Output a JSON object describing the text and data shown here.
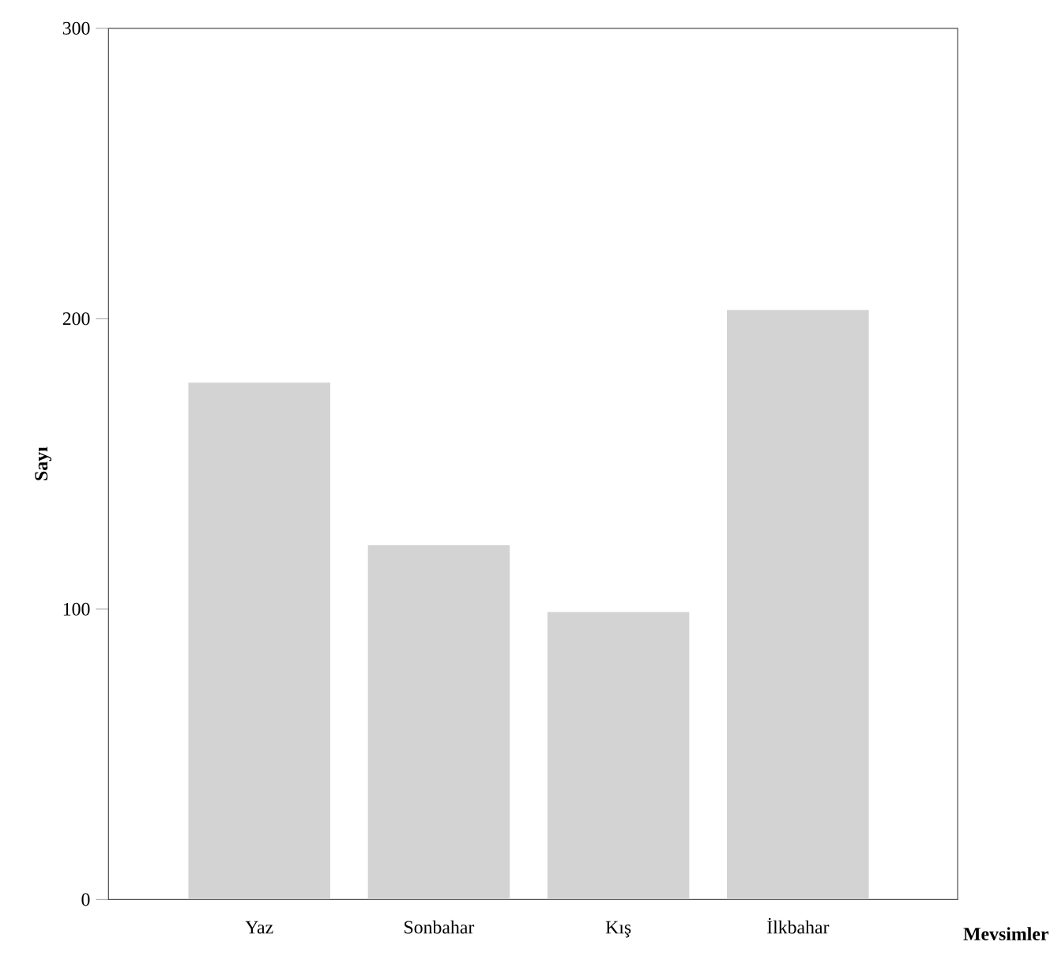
{
  "chart_data": {
    "type": "bar",
    "xlabel": "Mevsimler",
    "ylabel": "Sayı",
    "categories": [
      "Yaz",
      "Sonbahar",
      "Kış",
      "İlkbahar"
    ],
    "values": [
      178,
      122,
      99,
      203
    ],
    "color": "#d3d3d3",
    "ylim": [
      0,
      300
    ],
    "yticks": [
      0,
      100,
      200,
      300
    ],
    "grid": false
  }
}
